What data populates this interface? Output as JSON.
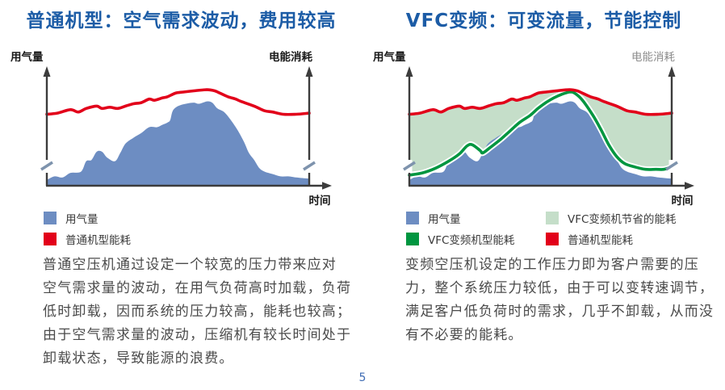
{
  "page": {
    "number": "5",
    "background": "#ffffff"
  },
  "colors": {
    "title_blue": "#1c5ca6",
    "air_blue": "#6d8dc2",
    "energy_red": "#e2001a",
    "vfc_green": "#009640",
    "saved_light_green": "#c5dec9",
    "axis_dark": "#3c3c3c",
    "axis_break_slash": "#7e93ad",
    "body_text_gray": "#4a4a4a"
  },
  "left_panel": {
    "legend": [
      {
        "label": "用气量",
        "color": "#6d8dc2"
      },
      {
        "label": "普通机型能耗",
        "color": "#e2001a"
      }
    ],
    "paragraph": "普通空压机通过设定一个较宽的压力带来应对\n空气需求量的波动，在用气负荷高时加载，负荷\n低时卸载，因而系统的压力较高，能耗也较高；\n由于空气需求量的波动，压缩机有较长时间处于\n卸载状态，导致能源的浪费。"
  },
  "right_panel": {
    "legend": [
      {
        "label": "用气量",
        "color": "#6d8dc2"
      },
      {
        "label": "VFC变频机节省的能耗",
        "color": "#c5dec9"
      },
      {
        "label": "VFC变频机型能耗",
        "color": "#009640"
      },
      {
        "label": "普通机型能耗",
        "color": "#e2001a"
      }
    ],
    "paragraph": "变频空压机设定的工作压力即为客户需要的压\n力，整个系统压力较低，由于可以变转速调节，\n满足客户低负荷时的需求，几乎不卸载，从而没\n有不必要的能耗。"
  },
  "chart_data": [
    {
      "type": "area",
      "title": "普通机型：空气需求波动，费用较高",
      "ylabel_left": "用气量",
      "ylabel_right": "电能消耗",
      "xlabel": "时间",
      "x_range": [
        0,
        100
      ],
      "ylim": [
        0,
        100
      ],
      "grid": false,
      "axis_breaks": true,
      "legend_position": "below",
      "series": [
        {
          "id": "air",
          "name": "用气量",
          "kind": "area",
          "color": "#6d8dc2",
          "points": [
            [
              0,
              5
            ],
            [
              3,
              8
            ],
            [
              6,
              7
            ],
            [
              9,
              11
            ],
            [
              13,
              12
            ],
            [
              15,
              21
            ],
            [
              17,
              22
            ],
            [
              19,
              29
            ],
            [
              21,
              29
            ],
            [
              23,
              24
            ],
            [
              26,
              21
            ],
            [
              28,
              28
            ],
            [
              30,
              36
            ],
            [
              33,
              41
            ],
            [
              36,
              45
            ],
            [
              39,
              50
            ],
            [
              42,
              50
            ],
            [
              44,
              52
            ],
            [
              46,
              54
            ],
            [
              47,
              56
            ],
            [
              48,
              64
            ],
            [
              50,
              68
            ],
            [
              53,
              70
            ],
            [
              56,
              71
            ],
            [
              58,
              70
            ],
            [
              61,
              72
            ],
            [
              63,
              71
            ],
            [
              65,
              66
            ],
            [
              68,
              62
            ],
            [
              72,
              50
            ],
            [
              75,
              38
            ],
            [
              77,
              28
            ],
            [
              79,
              22
            ],
            [
              81,
              15
            ],
            [
              83,
              12
            ],
            [
              86,
              10
            ],
            [
              89,
              8
            ],
            [
              92,
              8
            ],
            [
              95,
              7
            ],
            [
              100,
              6
            ]
          ]
        },
        {
          "id": "fixed",
          "name": "普通机型能耗",
          "kind": "line",
          "color": "#e2001a",
          "points": [
            [
              0,
              61
            ],
            [
              4,
              62
            ],
            [
              9,
              65
            ],
            [
              12,
              63
            ],
            [
              15,
              66
            ],
            [
              19,
              68
            ],
            [
              21,
              66
            ],
            [
              24,
              67
            ],
            [
              27,
              66
            ],
            [
              30,
              68
            ],
            [
              33,
              70
            ],
            [
              36,
              71
            ],
            [
              39,
              74
            ],
            [
              41,
              73
            ],
            [
              44,
              75
            ],
            [
              46,
              76
            ],
            [
              49,
              79
            ],
            [
              52,
              80
            ],
            [
              56,
              81
            ],
            [
              61,
              82
            ],
            [
              64,
              81
            ],
            [
              66,
              79
            ],
            [
              69,
              76
            ],
            [
              72,
              74
            ],
            [
              74,
              72
            ],
            [
              79,
              68
            ],
            [
              83,
              64
            ],
            [
              86,
              63
            ],
            [
              90,
              61
            ],
            [
              95,
              61
            ],
            [
              100,
              62
            ]
          ]
        }
      ]
    },
    {
      "type": "area",
      "title": "VFC变频：可变流量，节能控制",
      "ylabel_left": "用气量",
      "ylabel_right": "电能消耗",
      "xlabel": "时间",
      "x_range": [
        0,
        100
      ],
      "ylim": [
        0,
        100
      ],
      "grid": false,
      "axis_breaks": true,
      "legend_position": "below",
      "series": [
        {
          "id": "saved",
          "name": "VFC变频机节省的能耗",
          "kind": "band",
          "color": "#c5dec9",
          "upper": "fixed",
          "lower": "vfc"
        },
        {
          "id": "air",
          "name": "用气量",
          "kind": "area",
          "color": "#6d8dc2",
          "points": [
            [
              0,
              5
            ],
            [
              3,
              8
            ],
            [
              6,
              7
            ],
            [
              9,
              11
            ],
            [
              13,
              12
            ],
            [
              15,
              21
            ],
            [
              17,
              22
            ],
            [
              19,
              29
            ],
            [
              21,
              29
            ],
            [
              23,
              24
            ],
            [
              26,
              21
            ],
            [
              28,
              28
            ],
            [
              30,
              36
            ],
            [
              33,
              41
            ],
            [
              36,
              45
            ],
            [
              39,
              50
            ],
            [
              42,
              50
            ],
            [
              44,
              52
            ],
            [
              46,
              54
            ],
            [
              47,
              56
            ],
            [
              48,
              64
            ],
            [
              50,
              68
            ],
            [
              53,
              70
            ],
            [
              56,
              71
            ],
            [
              58,
              70
            ],
            [
              61,
              72
            ],
            [
              63,
              71
            ],
            [
              65,
              66
            ],
            [
              68,
              62
            ],
            [
              72,
              50
            ],
            [
              75,
              38
            ],
            [
              77,
              28
            ],
            [
              79,
              22
            ],
            [
              81,
              15
            ],
            [
              83,
              12
            ],
            [
              86,
              10
            ],
            [
              89,
              8
            ],
            [
              92,
              8
            ],
            [
              95,
              7
            ],
            [
              100,
              6
            ]
          ]
        },
        {
          "id": "vfc",
          "name": "VFC变频机型能耗",
          "kind": "line",
          "color": "#009640",
          "white_casing": true,
          "points": [
            [
              0,
              9
            ],
            [
              5,
              11
            ],
            [
              10,
              15
            ],
            [
              15,
              21
            ],
            [
              19,
              27
            ],
            [
              22,
              34
            ],
            [
              24,
              35
            ],
            [
              27,
              30
            ],
            [
              28,
              28
            ],
            [
              31,
              33
            ],
            [
              35,
              40
            ],
            [
              38,
              46
            ],
            [
              42,
              54
            ],
            [
              46,
              60
            ],
            [
              49,
              66
            ],
            [
              52,
              71
            ],
            [
              55,
              75
            ],
            [
              58,
              78
            ],
            [
              61,
              80
            ],
            [
              63,
              79
            ],
            [
              66,
              73
            ],
            [
              70,
              60
            ],
            [
              73,
              48
            ],
            [
              76,
              35
            ],
            [
              79,
              25
            ],
            [
              82,
              19
            ],
            [
              86,
              16
            ],
            [
              90,
              14
            ],
            [
              94,
              14
            ],
            [
              97,
              14
            ],
            [
              100,
              16
            ]
          ]
        },
        {
          "id": "fixed",
          "name": "普通机型能耗",
          "kind": "line",
          "color": "#e2001a",
          "points": [
            [
              0,
              61
            ],
            [
              4,
              62
            ],
            [
              9,
              65
            ],
            [
              12,
              63
            ],
            [
              15,
              66
            ],
            [
              19,
              68
            ],
            [
              21,
              66
            ],
            [
              24,
              67
            ],
            [
              27,
              66
            ],
            [
              30,
              68
            ],
            [
              33,
              70
            ],
            [
              36,
              71
            ],
            [
              39,
              74
            ],
            [
              41,
              73
            ],
            [
              44,
              75
            ],
            [
              46,
              76
            ],
            [
              49,
              79
            ],
            [
              52,
              80
            ],
            [
              56,
              81
            ],
            [
              61,
              82
            ],
            [
              64,
              81
            ],
            [
              66,
              79
            ],
            [
              69,
              76
            ],
            [
              72,
              74
            ],
            [
              74,
              72
            ],
            [
              79,
              68
            ],
            [
              83,
              64
            ],
            [
              86,
              63
            ],
            [
              90,
              61
            ],
            [
              95,
              61
            ],
            [
              100,
              62
            ]
          ]
        }
      ]
    }
  ]
}
